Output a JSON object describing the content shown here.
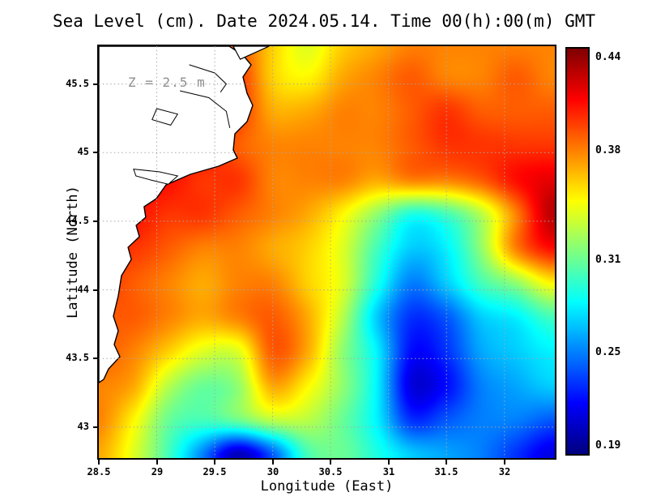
{
  "chart_data": {
    "type": "heatmap",
    "title": "Sea Level (cm). Date 2024.05.14. Time 00(h):00(m) GMT",
    "xlabel": "Longitude (East)",
    "ylabel": "Latitude (North)",
    "annotation": "Z = 2.5 m",
    "x_range": [
      28.5,
      32.435
    ],
    "y_range": [
      42.775,
      45.775
    ],
    "x_ticks": [
      28.5,
      29,
      29.5,
      30,
      30.5,
      31,
      31.5,
      32
    ],
    "y_ticks": [
      43,
      43.5,
      44,
      44.5,
      45,
      45.5
    ],
    "grid_lines": true,
    "colormap": "jet",
    "colorbar": {
      "min": 0.185,
      "max": 0.446,
      "tick_values": [
        0.44,
        0.38,
        0.31,
        0.25,
        0.19
      ],
      "tick_labels": [
        "0.44",
        "0.38",
        "0.31",
        "0.25",
        "0.19"
      ]
    },
    "grid": {
      "lon": [
        28.5,
        28.8,
        29.1,
        29.4,
        29.7,
        30.0,
        30.3,
        30.6,
        30.9,
        31.2,
        31.5,
        31.8,
        32.1,
        32.4
      ],
      "lat": [
        45.8,
        45.55,
        45.3,
        45.05,
        44.8,
        44.55,
        44.3,
        44.05,
        43.8,
        43.55,
        43.3,
        43.05,
        42.8
      ],
      "values": [
        [
          0.38,
          0.38,
          0.38,
          0.39,
          0.39,
          0.36,
          0.34,
          0.36,
          0.37,
          0.38,
          0.38,
          0.38,
          0.38,
          0.38
        ],
        [
          0.38,
          0.39,
          0.39,
          0.4,
          0.4,
          0.36,
          0.35,
          0.37,
          0.38,
          0.39,
          0.38,
          0.38,
          0.39,
          0.38
        ],
        [
          0.39,
          0.39,
          0.4,
          0.41,
          0.4,
          0.37,
          0.37,
          0.38,
          0.38,
          0.39,
          0.4,
          0.39,
          0.39,
          0.39
        ],
        [
          0.4,
          0.4,
          0.41,
          0.41,
          0.39,
          0.38,
          0.38,
          0.38,
          0.38,
          0.39,
          0.4,
          0.4,
          0.4,
          0.4
        ],
        [
          0.41,
          0.41,
          0.41,
          0.4,
          0.4,
          0.38,
          0.38,
          0.38,
          0.37,
          0.38,
          0.38,
          0.39,
          0.41,
          0.42
        ],
        [
          0.41,
          0.41,
          0.4,
          0.4,
          0.39,
          0.38,
          0.37,
          0.35,
          0.32,
          0.29,
          0.3,
          0.33,
          0.38,
          0.43
        ],
        [
          0.4,
          0.4,
          0.39,
          0.38,
          0.38,
          0.37,
          0.36,
          0.34,
          0.3,
          0.27,
          0.28,
          0.32,
          0.38,
          0.41
        ],
        [
          0.4,
          0.39,
          0.38,
          0.37,
          0.38,
          0.38,
          0.36,
          0.34,
          0.29,
          0.25,
          0.27,
          0.3,
          0.32,
          0.35
        ],
        [
          0.39,
          0.39,
          0.38,
          0.37,
          0.38,
          0.39,
          0.37,
          0.33,
          0.27,
          0.23,
          0.24,
          0.27,
          0.28,
          0.3
        ],
        [
          0.39,
          0.38,
          0.36,
          0.34,
          0.34,
          0.39,
          0.37,
          0.32,
          0.28,
          0.22,
          0.23,
          0.26,
          0.27,
          0.28
        ],
        [
          0.38,
          0.37,
          0.33,
          0.31,
          0.32,
          0.37,
          0.35,
          0.32,
          0.28,
          0.21,
          0.22,
          0.25,
          0.26,
          0.27
        ],
        [
          0.38,
          0.35,
          0.31,
          0.3,
          0.31,
          0.33,
          0.33,
          0.31,
          0.28,
          0.23,
          0.24,
          0.25,
          0.25,
          0.24
        ],
        [
          0.37,
          0.34,
          0.3,
          0.25,
          0.2,
          0.24,
          0.3,
          0.31,
          0.29,
          0.27,
          0.26,
          0.25,
          0.23,
          0.21
        ]
      ]
    },
    "land": {
      "coast": [
        [
          28.5,
          45.775
        ],
        [
          29.625,
          45.775
        ],
        [
          29.744,
          45.71
        ],
        [
          29.814,
          45.639
        ],
        [
          29.744,
          45.551
        ],
        [
          29.779,
          45.432
        ],
        [
          29.828,
          45.344
        ],
        [
          29.779,
          45.226
        ],
        [
          29.674,
          45.137
        ],
        [
          29.66,
          45.019
        ],
        [
          29.695,
          44.96
        ],
        [
          29.534,
          44.901
        ],
        [
          29.29,
          44.842
        ],
        [
          29.08,
          44.765
        ],
        [
          28.996,
          44.665
        ],
        [
          28.891,
          44.606
        ],
        [
          28.905,
          44.529
        ],
        [
          28.822,
          44.47
        ],
        [
          28.85,
          44.387
        ],
        [
          28.752,
          44.31
        ],
        [
          28.78,
          44.222
        ],
        [
          28.696,
          44.104
        ],
        [
          28.668,
          43.956
        ],
        [
          28.626,
          43.808
        ],
        [
          28.668,
          43.702
        ],
        [
          28.633,
          43.602
        ],
        [
          28.682,
          43.513
        ],
        [
          28.584,
          43.424
        ],
        [
          28.542,
          43.347
        ],
        [
          28.5,
          43.324
        ]
      ],
      "sliver": [
        [
          29.66,
          45.775
        ],
        [
          29.97,
          45.775
        ],
        [
          29.72,
          45.68
        ]
      ],
      "lakes": [
        [
          [
            28.8,
            44.88
          ],
          [
            29.02,
            44.86
          ],
          [
            29.18,
            44.83
          ],
          [
            29.1,
            44.77
          ],
          [
            28.95,
            44.8
          ],
          [
            28.82,
            44.83
          ]
        ],
        [
          [
            29.0,
            45.32
          ],
          [
            29.18,
            45.28
          ],
          [
            29.12,
            45.2
          ],
          [
            28.96,
            45.24
          ]
        ]
      ],
      "rivers": [
        [
          [
            29.2,
            45.45
          ],
          [
            29.45,
            45.4
          ],
          [
            29.6,
            45.3
          ],
          [
            29.63,
            45.18
          ]
        ],
        [
          [
            29.28,
            45.64
          ],
          [
            29.5,
            45.58
          ],
          [
            29.6,
            45.5
          ],
          [
            29.55,
            45.44
          ]
        ]
      ]
    },
    "colors": {
      "land": "#ffffff",
      "coastline": "#000000",
      "gridline": "#a8a8a8",
      "annotation": "#8f8f8f",
      "axis": "#000000"
    }
  }
}
